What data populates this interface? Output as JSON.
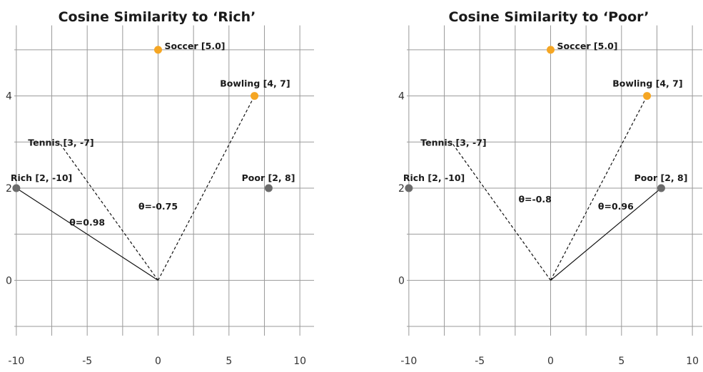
{
  "chart_data": [
    {
      "type": "scatter",
      "title": "Cosine Similarity to ‘Rich’",
      "xlabel": "",
      "ylabel": "",
      "xlim": [
        -11,
        11
      ],
      "ylim": [
        -1.2,
        5.4
      ],
      "xticks": [
        -10,
        -5,
        0,
        5,
        10
      ],
      "yticks": [
        0,
        2,
        4
      ],
      "grid": true,
      "points": [
        {
          "label": "Soccer [5.0]",
          "x": 0,
          "y": 5,
          "color": "#f5a623"
        },
        {
          "label": "Bowling [4, 7]",
          "x": 6.8,
          "y": 4,
          "color": "#f5a623"
        },
        {
          "label": "Tennis [3, -7]",
          "x": -7,
          "y": 3,
          "color": null
        },
        {
          "label": "Rich [2, -10]",
          "x": -10,
          "y": 2,
          "color": "#6b6b6b"
        },
        {
          "label": "Poor [2, 8]",
          "x": 7.8,
          "y": 2,
          "color": "#6b6b6b"
        }
      ],
      "vectors": [
        {
          "to": "Rich [2, -10]",
          "style": "solid"
        },
        {
          "to": "Tennis [3, -7]",
          "style": "dashed"
        },
        {
          "to": "Bowling [4, 7]",
          "style": "dashed"
        }
      ],
      "annotations": [
        {
          "text": "θ=0.98",
          "x": -5,
          "y": 1.25
        },
        {
          "text": "θ=-0.75",
          "x": 0,
          "y": 1.6
        }
      ]
    },
    {
      "type": "scatter",
      "title": "Cosine Similarity to ‘Poor’",
      "xlabel": "",
      "ylabel": "",
      "xlim": [
        -11,
        11
      ],
      "ylim": [
        -1.2,
        5.4
      ],
      "xticks": [
        -10,
        -5,
        0,
        5,
        10
      ],
      "yticks": [
        0,
        2,
        4
      ],
      "grid": true,
      "points": [
        {
          "label": "Soccer [5.0]",
          "x": 0,
          "y": 5,
          "color": "#f5a623"
        },
        {
          "label": "Bowling [4, 7]",
          "x": 6.8,
          "y": 4,
          "color": "#f5a623"
        },
        {
          "label": "Tennis [3, -7]",
          "x": -7,
          "y": 3,
          "color": null
        },
        {
          "label": "Rich [2, -10]",
          "x": -10,
          "y": 2,
          "color": "#6b6b6b"
        },
        {
          "label": "Poor [2, 8]",
          "x": 7.8,
          "y": 2,
          "color": "#6b6b6b"
        }
      ],
      "vectors": [
        {
          "to": "Poor [2, 8]",
          "style": "solid"
        },
        {
          "to": "Tennis [3, -7]",
          "style": "dashed"
        },
        {
          "to": "Bowling [4, 7]",
          "style": "dashed"
        }
      ],
      "annotations": [
        {
          "text": "θ=-0.8",
          "x": -1.1,
          "y": 1.75
        },
        {
          "text": "θ=0.96",
          "x": 4.6,
          "y": 1.6
        }
      ]
    }
  ]
}
